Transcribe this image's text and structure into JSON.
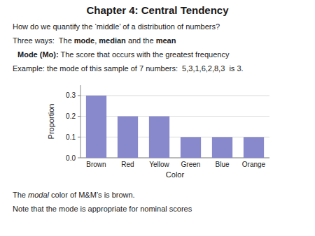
{
  "chart_data": {
    "type": "bar",
    "title": "Chapter 4: Central Tendency",
    "annotations": [
      [
        "How do we quantify the ‘middle’ of a distribution of numbers?"
      ],
      [
        "Three ways:  The ",
        "mode",
        ", ",
        "median",
        " and the ",
        "mean"
      ],
      [
        "Mode (Mo):",
        " The score that occurs with the greatest frequency"
      ],
      [
        "Example: the mode of this sample of 7 numbers:  5,3,1,6,2,8,3  is 3."
      ],
      [
        "The ",
        "modal",
        " color of M&M’s is brown."
      ],
      [
        "Note that the mode is appropriate for nominal scores"
      ]
    ],
    "categories": [
      "Brown",
      "Red",
      "Yellow",
      "Green",
      "Blue",
      "Orange"
    ],
    "values": [
      0.3,
      0.2,
      0.2,
      0.1,
      0.1,
      0.1
    ],
    "color": "#8888cc",
    "x_label": "Color",
    "y_label": "Proportion",
    "ylim": [
      0,
      0.35
    ],
    "yticks": [
      {
        "value": 0,
        "label": "0.0"
      },
      0.1,
      0.2,
      0.3
    ],
    "grid": true
  }
}
